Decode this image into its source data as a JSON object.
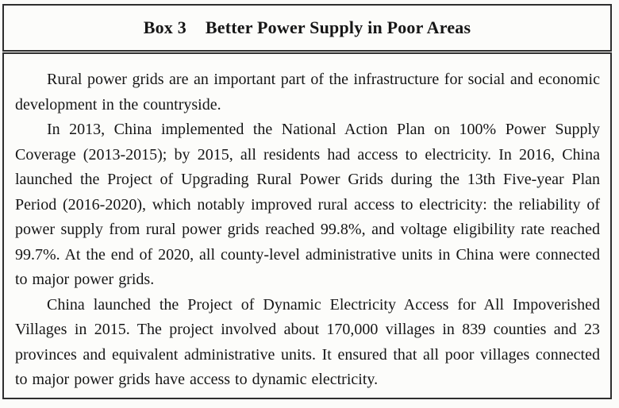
{
  "colors": {
    "page_bg": "#fbfbf9",
    "box_bg": "#fcfcfa",
    "border": "#2e2e2e",
    "text": "#161616"
  },
  "box": {
    "label": "Box 3",
    "title": "Better Power Supply in Poor Areas"
  },
  "paragraphs": [
    "Rural power grids are an important part of the infrastructure for social and economic development in the countryside.",
    "In 2013, China implemented the National Action Plan on 100% Power Supply Coverage (2013-2015); by 2015, all residents had access to electricity. In 2016, China launched the Project of Upgrading Rural Power Grids during the 13th Five-year Plan Period (2016-2020), which notably improved rural access to electricity: the reliability of power supply from rural power grids reached 99.8%, and voltage eligibility rate reached 99.7%. At the end of 2020, all county-level administrative units in China were connected to major power grids.",
    "China launched the Project of Dynamic Electricity Access for All Impoverished Villages in 2015. The project involved about 170,000 villages in 839 counties and 23 provinces and equivalent administrative units. It ensured that all poor villages connected to major power grids have access to dynamic electricity."
  ]
}
